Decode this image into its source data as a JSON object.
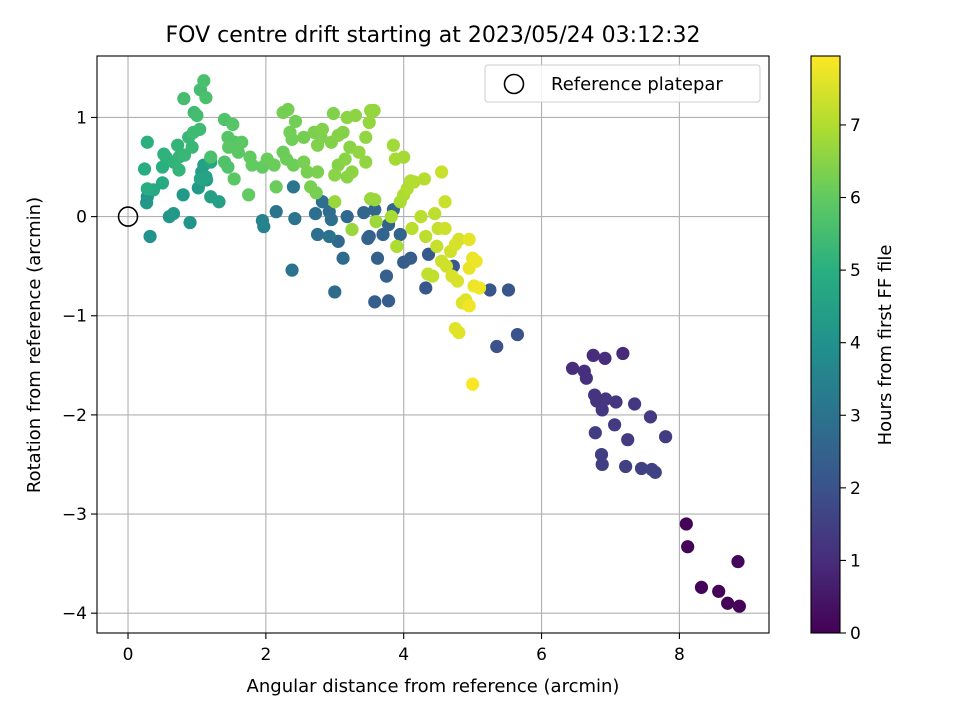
{
  "chart_data": {
    "type": "scatter",
    "title": "FOV centre drift starting at 2023/05/24 03:12:32",
    "xlabel": "Angular distance from reference (arcmin)",
    "ylabel": "Rotation from reference (arcmin)",
    "xlim": [
      -0.45,
      9.3
    ],
    "ylim": [
      -4.2,
      1.62
    ],
    "xticks": [
      0,
      2,
      4,
      6,
      8
    ],
    "yticks": [
      -4,
      -3,
      -2,
      -1,
      0,
      1
    ],
    "xtick_labels": [
      "0",
      "2",
      "4",
      "6",
      "8"
    ],
    "ytick_labels": [
      "−4",
      "−3",
      "−2",
      "−1",
      "0",
      "1"
    ],
    "grid": true,
    "legend": {
      "position": "top-right",
      "entries": [
        "Reference platepar"
      ]
    },
    "reference_point": {
      "x": 0,
      "y": 0,
      "marker": "open-circle"
    },
    "colorbar": {
      "label": "Hours from first FF file",
      "range": [
        0,
        7.95
      ],
      "ticks": [
        0,
        1,
        2,
        3,
        4,
        5,
        6,
        7
      ],
      "tick_labels": [
        "0",
        "1",
        "2",
        "3",
        "4",
        "5",
        "6",
        "7"
      ],
      "colormap": "viridis"
    },
    "points": [
      {
        "x": 8.1,
        "y": -3.1,
        "h": 0.1
      },
      {
        "x": 8.12,
        "y": -3.33,
        "h": 0.1
      },
      {
        "x": 8.85,
        "y": -3.48,
        "h": 0.15
      },
      {
        "x": 8.32,
        "y": -3.74,
        "h": 0.1
      },
      {
        "x": 8.57,
        "y": -3.78,
        "h": 0.1
      },
      {
        "x": 8.7,
        "y": -3.9,
        "h": 0.05
      },
      {
        "x": 8.87,
        "y": -3.93,
        "h": 0.05
      },
      {
        "x": 6.45,
        "y": -1.53,
        "h": 1.0
      },
      {
        "x": 6.62,
        "y": -1.56,
        "h": 1.05
      },
      {
        "x": 6.65,
        "y": -1.63,
        "h": 1.05
      },
      {
        "x": 6.75,
        "y": -1.4,
        "h": 1.0
      },
      {
        "x": 6.92,
        "y": -1.43,
        "h": 1.0
      },
      {
        "x": 7.18,
        "y": -1.38,
        "h": 0.95
      },
      {
        "x": 6.77,
        "y": -1.8,
        "h": 1.2
      },
      {
        "x": 6.8,
        "y": -1.86,
        "h": 1.2
      },
      {
        "x": 6.93,
        "y": -1.84,
        "h": 1.25
      },
      {
        "x": 7.08,
        "y": -1.87,
        "h": 1.25
      },
      {
        "x": 6.88,
        "y": -1.95,
        "h": 1.3
      },
      {
        "x": 7.35,
        "y": -1.89,
        "h": 1.3
      },
      {
        "x": 7.58,
        "y": -2.02,
        "h": 1.35
      },
      {
        "x": 7.06,
        "y": -2.1,
        "h": 1.35
      },
      {
        "x": 6.78,
        "y": -2.18,
        "h": 1.4
      },
      {
        "x": 7.25,
        "y": -2.25,
        "h": 1.35
      },
      {
        "x": 7.8,
        "y": -2.22,
        "h": 1.4
      },
      {
        "x": 6.87,
        "y": -2.4,
        "h": 1.45
      },
      {
        "x": 6.88,
        "y": -2.5,
        "h": 1.45
      },
      {
        "x": 7.22,
        "y": -2.52,
        "h": 1.5
      },
      {
        "x": 7.45,
        "y": -2.54,
        "h": 1.5
      },
      {
        "x": 7.6,
        "y": -2.55,
        "h": 1.55
      },
      {
        "x": 7.65,
        "y": -2.58,
        "h": 1.55
      },
      {
        "x": 5.35,
        "y": -1.31,
        "h": 2.0
      },
      {
        "x": 5.65,
        "y": -1.19,
        "h": 2.05
      },
      {
        "x": 5.25,
        "y": -0.74,
        "h": 2.1
      },
      {
        "x": 5.52,
        "y": -0.74,
        "h": 2.1
      },
      {
        "x": 4.32,
        "y": -0.72,
        "h": 2.15
      },
      {
        "x": 4.72,
        "y": -0.5,
        "h": 2.2
      },
      {
        "x": 4.36,
        "y": -0.38,
        "h": 2.25
      },
      {
        "x": 4.1,
        "y": -0.42,
        "h": 2.3
      },
      {
        "x": 4.0,
        "y": -0.46,
        "h": 2.3
      },
      {
        "x": 3.58,
        "y": -0.86,
        "h": 2.35
      },
      {
        "x": 3.78,
        "y": -0.85,
        "h": 2.35
      },
      {
        "x": 3.75,
        "y": -0.6,
        "h": 2.4
      },
      {
        "x": 3.62,
        "y": -0.42,
        "h": 2.45
      },
      {
        "x": 3.5,
        "y": -0.2,
        "h": 2.45
      },
      {
        "x": 3.48,
        "y": -0.22,
        "h": 2.5
      },
      {
        "x": 3.78,
        "y": -0.08,
        "h": 2.5
      },
      {
        "x": 3.7,
        "y": -0.18,
        "h": 2.55
      },
      {
        "x": 3.95,
        "y": -0.18,
        "h": 2.55
      },
      {
        "x": 3.85,
        "y": 0.07,
        "h": 2.6
      },
      {
        "x": 3.42,
        "y": 0.04,
        "h": 2.6
      },
      {
        "x": 3.58,
        "y": 0.07,
        "h": 2.65
      },
      {
        "x": 3.18,
        "y": 0.0,
        "h": 2.7
      },
      {
        "x": 3.05,
        "y": -0.25,
        "h": 2.7
      },
      {
        "x": 3.12,
        "y": -0.42,
        "h": 2.75
      },
      {
        "x": 3.0,
        "y": -0.76,
        "h": 2.75
      },
      {
        "x": 2.92,
        "y": 0.05,
        "h": 2.8
      },
      {
        "x": 2.95,
        "y": -0.03,
        "h": 2.85
      },
      {
        "x": 2.82,
        "y": 0.15,
        "h": 2.85
      },
      {
        "x": 2.72,
        "y": 0.03,
        "h": 2.9
      },
      {
        "x": 2.75,
        "y": -0.18,
        "h": 2.9
      },
      {
        "x": 2.92,
        "y": -0.2,
        "h": 2.95
      },
      {
        "x": 2.42,
        "y": -0.02,
        "h": 3.0
      },
      {
        "x": 2.38,
        "y": -0.54,
        "h": 3.0
      },
      {
        "x": 2.15,
        "y": 0.05,
        "h": 3.05
      },
      {
        "x": 2.4,
        "y": 0.3,
        "h": 3.1
      },
      {
        "x": 1.95,
        "y": -0.04,
        "h": 3.5
      },
      {
        "x": 1.97,
        "y": -0.1,
        "h": 3.5
      },
      {
        "x": 0.28,
        "y": 0.2,
        "h": 4.0
      },
      {
        "x": 0.32,
        "y": -0.2,
        "h": 4.0
      },
      {
        "x": 0.9,
        "y": -0.06,
        "h": 4.1
      },
      {
        "x": 0.6,
        "y": 0.0,
        "h": 4.1
      },
      {
        "x": 0.66,
        "y": 0.03,
        "h": 4.2
      },
      {
        "x": 0.27,
        "y": 0.14,
        "h": 4.2
      },
      {
        "x": 0.8,
        "y": 0.22,
        "h": 4.3
      },
      {
        "x": 1.02,
        "y": 0.29,
        "h": 4.3
      },
      {
        "x": 1.14,
        "y": 0.37,
        "h": 4.4
      },
      {
        "x": 1.2,
        "y": 0.2,
        "h": 4.5
      },
      {
        "x": 1.32,
        "y": 0.15,
        "h": 4.5
      },
      {
        "x": 1.07,
        "y": 0.45,
        "h": 4.4
      },
      {
        "x": 1.1,
        "y": 0.52,
        "h": 4.5
      },
      {
        "x": 1.13,
        "y": 0.4,
        "h": 4.6
      },
      {
        "x": 1.05,
        "y": 0.38,
        "h": 4.6
      },
      {
        "x": 1.2,
        "y": 0.55,
        "h": 4.7
      },
      {
        "x": 0.5,
        "y": 0.34,
        "h": 4.8
      },
      {
        "x": 0.37,
        "y": 0.27,
        "h": 4.8
      },
      {
        "x": 0.28,
        "y": 0.28,
        "h": 4.9
      },
      {
        "x": 0.24,
        "y": 0.48,
        "h": 4.9
      },
      {
        "x": 0.28,
        "y": 0.75,
        "h": 5.0
      },
      {
        "x": 0.5,
        "y": 0.5,
        "h": 5.0
      },
      {
        "x": 0.55,
        "y": 0.6,
        "h": 5.1
      },
      {
        "x": 0.52,
        "y": 0.63,
        "h": 5.1
      },
      {
        "x": 0.66,
        "y": 0.55,
        "h": 5.1
      },
      {
        "x": 0.74,
        "y": 0.47,
        "h": 5.2
      },
      {
        "x": 0.74,
        "y": 0.6,
        "h": 5.2
      },
      {
        "x": 0.72,
        "y": 0.72,
        "h": 5.2
      },
      {
        "x": 0.82,
        "y": 0.62,
        "h": 5.3
      },
      {
        "x": 0.88,
        "y": 0.8,
        "h": 5.3
      },
      {
        "x": 0.93,
        "y": 0.7,
        "h": 5.3
      },
      {
        "x": 0.95,
        "y": 0.85,
        "h": 5.4
      },
      {
        "x": 1.04,
        "y": 0.88,
        "h": 5.4
      },
      {
        "x": 0.96,
        "y": 1.05,
        "h": 5.4
      },
      {
        "x": 1.0,
        "y": 1.02,
        "h": 5.5
      },
      {
        "x": 0.81,
        "y": 1.19,
        "h": 5.5
      },
      {
        "x": 1.05,
        "y": 1.28,
        "h": 5.5
      },
      {
        "x": 1.1,
        "y": 1.37,
        "h": 5.6
      },
      {
        "x": 1.13,
        "y": 1.2,
        "h": 5.6
      },
      {
        "x": 1.2,
        "y": 0.6,
        "h": 5.6
      },
      {
        "x": 1.4,
        "y": 0.55,
        "h": 5.7
      },
      {
        "x": 1.45,
        "y": 0.5,
        "h": 5.7
      },
      {
        "x": 1.4,
        "y": 0.98,
        "h": 5.7
      },
      {
        "x": 1.52,
        "y": 0.93,
        "h": 5.8
      },
      {
        "x": 1.45,
        "y": 0.8,
        "h": 5.8
      },
      {
        "x": 1.55,
        "y": 0.75,
        "h": 5.8
      },
      {
        "x": 1.46,
        "y": 0.7,
        "h": 5.9
      },
      {
        "x": 1.6,
        "y": 0.65,
        "h": 5.9
      },
      {
        "x": 1.65,
        "y": 0.75,
        "h": 5.9
      },
      {
        "x": 1.54,
        "y": 0.38,
        "h": 5.9
      },
      {
        "x": 1.77,
        "y": 0.6,
        "h": 6.0
      },
      {
        "x": 1.8,
        "y": 0.52,
        "h": 6.0
      },
      {
        "x": 1.75,
        "y": 0.22,
        "h": 6.0
      },
      {
        "x": 1.95,
        "y": 0.5,
        "h": 6.0
      },
      {
        "x": 2.02,
        "y": 0.58,
        "h": 6.1
      },
      {
        "x": 2.12,
        "y": 0.52,
        "h": 6.1
      },
      {
        "x": 2.15,
        "y": 0.3,
        "h": 6.1
      },
      {
        "x": 2.25,
        "y": 0.65,
        "h": 6.1
      },
      {
        "x": 2.3,
        "y": 0.58,
        "h": 6.15
      },
      {
        "x": 2.4,
        "y": 0.52,
        "h": 6.15
      },
      {
        "x": 2.35,
        "y": 0.85,
        "h": 6.2
      },
      {
        "x": 2.38,
        "y": 0.78,
        "h": 6.2
      },
      {
        "x": 2.43,
        "y": 0.96,
        "h": 6.2
      },
      {
        "x": 2.25,
        "y": 1.05,
        "h": 6.25
      },
      {
        "x": 2.32,
        "y": 1.08,
        "h": 6.25
      },
      {
        "x": 2.55,
        "y": 0.8,
        "h": 6.25
      },
      {
        "x": 2.55,
        "y": 0.55,
        "h": 6.3
      },
      {
        "x": 2.6,
        "y": 0.45,
        "h": 6.3
      },
      {
        "x": 2.65,
        "y": 0.3,
        "h": 6.3
      },
      {
        "x": 2.73,
        "y": 0.24,
        "h": 6.3
      },
      {
        "x": 2.75,
        "y": 0.45,
        "h": 6.35
      },
      {
        "x": 2.7,
        "y": 0.85,
        "h": 6.35
      },
      {
        "x": 2.8,
        "y": 0.8,
        "h": 6.35
      },
      {
        "x": 2.75,
        "y": 0.72,
        "h": 6.4
      },
      {
        "x": 2.82,
        "y": 0.88,
        "h": 6.4
      },
      {
        "x": 2.95,
        "y": 0.75,
        "h": 6.4
      },
      {
        "x": 2.98,
        "y": 1.04,
        "h": 6.4
      },
      {
        "x": 3.05,
        "y": 0.82,
        "h": 6.45
      },
      {
        "x": 3.12,
        "y": 0.85,
        "h": 6.45
      },
      {
        "x": 3.05,
        "y": 0.52,
        "h": 6.45
      },
      {
        "x": 3.0,
        "y": 0.42,
        "h": 6.5
      },
      {
        "x": 3.18,
        "y": 0.4,
        "h": 6.5
      },
      {
        "x": 3.15,
        "y": 0.58,
        "h": 6.5
      },
      {
        "x": 3.22,
        "y": 0.7,
        "h": 6.5
      },
      {
        "x": 3.25,
        "y": 0.45,
        "h": 6.55
      },
      {
        "x": 3.18,
        "y": 1.0,
        "h": 6.55
      },
      {
        "x": 3.3,
        "y": 1.02,
        "h": 6.55
      },
      {
        "x": 3.35,
        "y": 0.65,
        "h": 6.6
      },
      {
        "x": 3.45,
        "y": 0.55,
        "h": 6.6
      },
      {
        "x": 3.45,
        "y": 0.8,
        "h": 6.6
      },
      {
        "x": 3.5,
        "y": 0.95,
        "h": 6.65
      },
      {
        "x": 3.52,
        "y": 1.07,
        "h": 6.65
      },
      {
        "x": 3.57,
        "y": 1.07,
        "h": 6.65
      },
      {
        "x": 3.52,
        "y": 0.18,
        "h": 6.7
      },
      {
        "x": 3.58,
        "y": 0.17,
        "h": 6.7
      },
      {
        "x": 3.25,
        "y": -0.13,
        "h": 6.7
      },
      {
        "x": 3.0,
        "y": 0.15,
        "h": 6.7
      },
      {
        "x": 3.6,
        "y": -0.05,
        "h": 6.75
      },
      {
        "x": 3.85,
        "y": 0.72,
        "h": 6.8
      },
      {
        "x": 3.88,
        "y": 0.58,
        "h": 6.85
      },
      {
        "x": 4.0,
        "y": 0.6,
        "h": 6.85
      },
      {
        "x": 3.82,
        "y": 0.0,
        "h": 6.9
      },
      {
        "x": 3.95,
        "y": 0.15,
        "h": 6.9
      },
      {
        "x": 3.9,
        "y": -0.3,
        "h": 6.95
      },
      {
        "x": 4.0,
        "y": 0.22,
        "h": 6.95
      },
      {
        "x": 4.1,
        "y": 0.36,
        "h": 7.0
      },
      {
        "x": 4.05,
        "y": 0.28,
        "h": 7.0
      },
      {
        "x": 4.15,
        "y": 0.35,
        "h": 7.05
      },
      {
        "x": 4.3,
        "y": 0.38,
        "h": 7.05
      },
      {
        "x": 4.12,
        "y": -0.12,
        "h": 7.1
      },
      {
        "x": 4.25,
        "y": 0.0,
        "h": 7.1
      },
      {
        "x": 4.32,
        "y": -0.2,
        "h": 7.15
      },
      {
        "x": 4.45,
        "y": 0.03,
        "h": 7.15
      },
      {
        "x": 4.35,
        "y": -0.58,
        "h": 7.2
      },
      {
        "x": 4.42,
        "y": -0.6,
        "h": 7.2
      },
      {
        "x": 4.5,
        "y": -0.12,
        "h": 7.25
      },
      {
        "x": 4.48,
        "y": -0.3,
        "h": 7.25
      },
      {
        "x": 4.55,
        "y": 0.45,
        "h": 7.3
      },
      {
        "x": 4.6,
        "y": 0.15,
        "h": 7.3
      },
      {
        "x": 4.6,
        "y": -0.12,
        "h": 7.35
      },
      {
        "x": 4.55,
        "y": -0.45,
        "h": 7.35
      },
      {
        "x": 4.62,
        "y": -0.5,
        "h": 7.4
      },
      {
        "x": 4.68,
        "y": -0.35,
        "h": 7.4
      },
      {
        "x": 4.75,
        "y": -0.28,
        "h": 7.45
      },
      {
        "x": 4.8,
        "y": -0.23,
        "h": 7.45
      },
      {
        "x": 4.7,
        "y": -0.6,
        "h": 7.5
      },
      {
        "x": 4.78,
        "y": -0.65,
        "h": 7.5
      },
      {
        "x": 4.85,
        "y": -0.87,
        "h": 7.55
      },
      {
        "x": 4.9,
        "y": -0.84,
        "h": 7.55
      },
      {
        "x": 4.75,
        "y": -1.13,
        "h": 7.6
      },
      {
        "x": 4.8,
        "y": -1.17,
        "h": 7.6
      },
      {
        "x": 4.95,
        "y": -0.23,
        "h": 7.65
      },
      {
        "x": 4.95,
        "y": -0.52,
        "h": 7.7
      },
      {
        "x": 5.0,
        "y": -0.42,
        "h": 7.7
      },
      {
        "x": 5.05,
        "y": -0.45,
        "h": 7.75
      },
      {
        "x": 5.02,
        "y": -0.7,
        "h": 7.75
      },
      {
        "x": 5.1,
        "y": -0.72,
        "h": 7.8
      },
      {
        "x": 4.95,
        "y": -0.9,
        "h": 7.8
      },
      {
        "x": 5.0,
        "y": -1.69,
        "h": 7.9
      }
    ]
  }
}
